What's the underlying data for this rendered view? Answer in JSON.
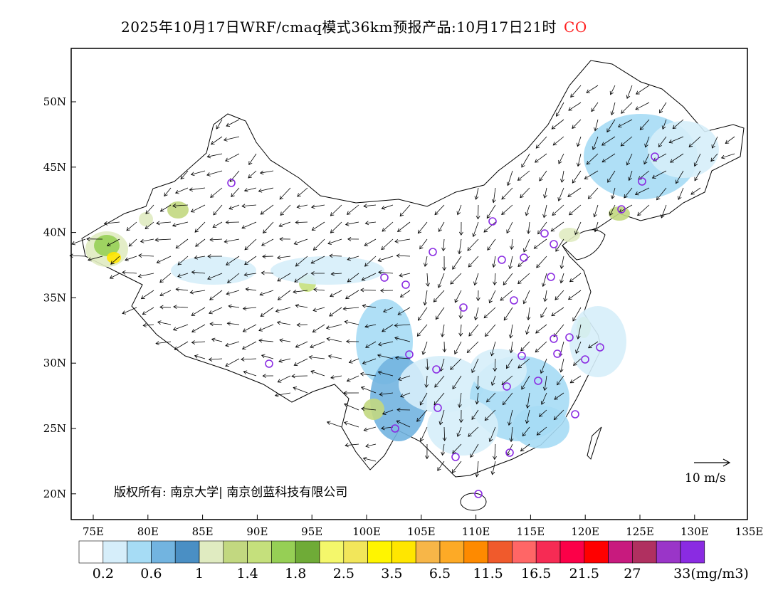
{
  "title": {
    "text": "2025年10月17日WRF/cmaq模式36km预报产品:10月17日21时",
    "species": "CO"
  },
  "map": {
    "lon_labels": [
      "75E",
      "80E",
      "85E",
      "90E",
      "95E",
      "100E",
      "105E",
      "110E",
      "115E",
      "120E",
      "125E",
      "130E",
      "135E"
    ],
    "lat_labels": [
      "50N",
      "45N",
      "40N",
      "35N",
      "30N",
      "25N",
      "20N"
    ],
    "copyright": "版权所有: 南京大学| 南京创蓝科技有限公司",
    "vector_key": "10 m/s"
  },
  "colorbar": {
    "colors": [
      "#ffffff",
      "#d6eefa",
      "#a6dcf5",
      "#72b4e0",
      "#4a8fc4",
      "#e0ebc1",
      "#c2d880",
      "#c5e07c",
      "#96cf55",
      "#6fab37",
      "#f4f76b",
      "#f2e65a",
      "#fff500",
      "#ffe600",
      "#f7b648",
      "#fdaa26",
      "#fe8a00",
      "#f05a2c",
      "#ff6666",
      "#f62b54",
      "#fc0048",
      "#ff0000",
      "#c81a7e",
      "#b03060",
      "#9a35c8",
      "#8a2be2"
    ],
    "labels": [
      "0.2",
      "0.6",
      "1",
      "1.4",
      "1.8",
      "2.5",
      "3.5",
      "6.5",
      "11.5",
      "16.5",
      "21.5",
      "27",
      "33(mg/m3)"
    ]
  }
}
